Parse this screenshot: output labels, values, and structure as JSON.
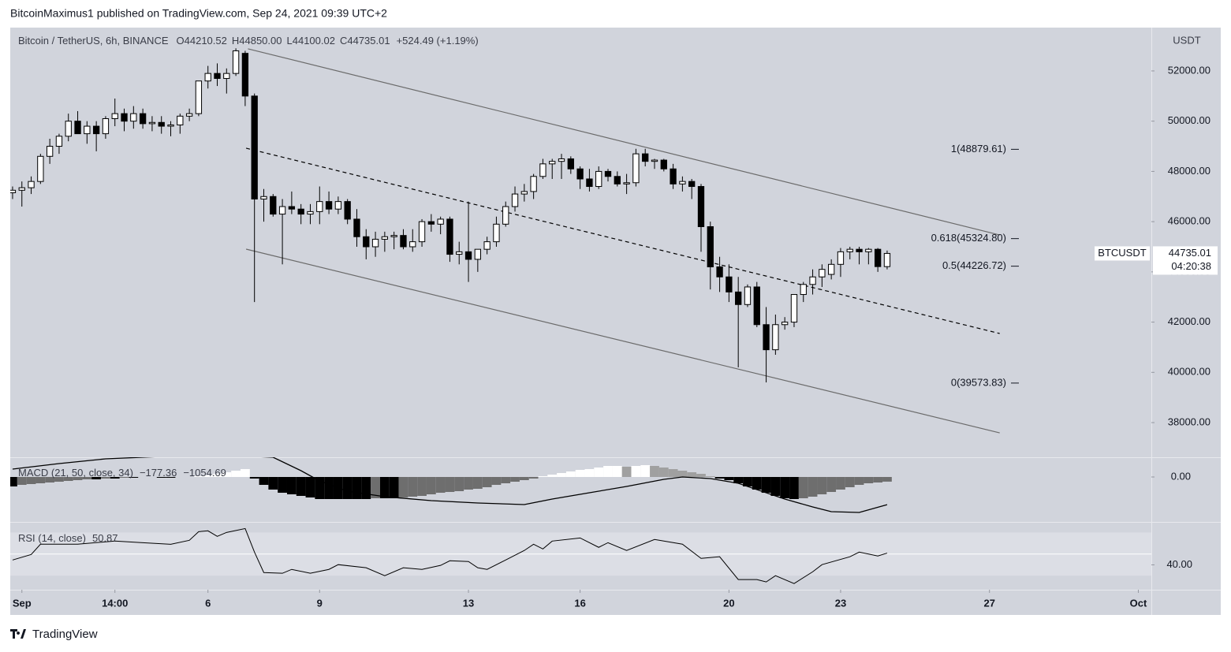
{
  "header": {
    "published": "BitcoinMaximus1 published on TradingView.com, Sep 24, 2021 09:39 UTC+2"
  },
  "footer": {
    "brand": "TradingView"
  },
  "chart_data": {
    "type": "candlestick",
    "symbol_title": "Bitcoin / TetherUS, 6h, BINANCE",
    "ohlc_legend": [
      {
        "key": "O",
        "value": "44210.52"
      },
      {
        "key": "H",
        "value": "44850.00"
      },
      {
        "key": "L",
        "value": "44100.02"
      },
      {
        "key": "C",
        "value": "44735.01"
      }
    ],
    "change": "+524.49 (+1.19%)",
    "currency": "USDT",
    "up_color": "#ffffff",
    "down_color": "#000000",
    "grid": false,
    "xlim": [
      -0.25,
      122.4
    ],
    "xticks": [
      {
        "value": 1,
        "label": "Sep"
      },
      {
        "value": 11,
        "label": "14:00"
      },
      {
        "value": 21,
        "label": "6"
      },
      {
        "value": 33,
        "label": "9"
      },
      {
        "value": 49,
        "label": "13"
      },
      {
        "value": 61,
        "label": "16"
      },
      {
        "value": 77,
        "label": "20"
      },
      {
        "value": 89,
        "label": "23"
      },
      {
        "value": 105,
        "label": "27"
      },
      {
        "value": 121,
        "label": "Oct"
      }
    ],
    "ylim": [
      36620,
      53725
    ],
    "yticks": [
      {
        "value": 38000,
        "label": "38000.00"
      },
      {
        "value": 40000,
        "label": "40000.00"
      },
      {
        "value": 42000,
        "label": "42000.00"
      },
      {
        "value": 44000,
        "label": "44000.00"
      },
      {
        "value": 46000,
        "label": "46000.00"
      },
      {
        "value": 48000,
        "label": "48000.00"
      },
      {
        "value": 50000,
        "label": "50000.00"
      },
      {
        "value": 52000,
        "label": "52000.00"
      }
    ],
    "candles": [
      [
        47150,
        47400,
        46900,
        47250
      ],
      [
        47250,
        47600,
        46600,
        47350
      ],
      [
        47350,
        47800,
        47100,
        47600
      ],
      [
        47600,
        48700,
        47500,
        48600
      ],
      [
        48600,
        49300,
        48300,
        49000
      ],
      [
        49000,
        49500,
        48700,
        49400
      ],
      [
        49400,
        50300,
        49200,
        50000
      ],
      [
        50000,
        50400,
        49500,
        49500
      ],
      [
        49500,
        50000,
        49100,
        49800
      ],
      [
        49800,
        50000,
        48800,
        49500
      ],
      [
        49500,
        50200,
        49300,
        50100
      ],
      [
        50100,
        50900,
        49800,
        50300
      ],
      [
        50300,
        50500,
        49600,
        50000
      ],
      [
        50000,
        50600,
        49700,
        50300
      ],
      [
        50300,
        50500,
        49700,
        49900
      ],
      [
        49900,
        50200,
        49600,
        49950
      ],
      [
        49950,
        50200,
        49500,
        49800
      ],
      [
        49800,
        50000,
        49400,
        49850
      ],
      [
        49850,
        50300,
        49500,
        50200
      ],
      [
        50200,
        50500,
        50000,
        50300
      ],
      [
        50300,
        51600,
        50200,
        51600
      ],
      [
        51600,
        52200,
        51300,
        51900
      ],
      [
        51900,
        52300,
        51400,
        51700
      ],
      [
        51700,
        52100,
        51100,
        51900
      ],
      [
        51900,
        52900,
        51800,
        52800
      ],
      [
        52700,
        52800,
        50600,
        51000
      ],
      [
        51000,
        51100,
        42800,
        46900
      ],
      [
        46900,
        47300,
        46000,
        47000
      ],
      [
        47000,
        47100,
        46200,
        46300
      ],
      [
        46300,
        46900,
        44300,
        46600
      ],
      [
        46600,
        47200,
        46300,
        46500
      ],
      [
        46500,
        46700,
        45900,
        46300
      ],
      [
        46300,
        46700,
        45900,
        46400
      ],
      [
        46400,
        47400,
        45900,
        46800
      ],
      [
        46800,
        47200,
        46300,
        46500
      ],
      [
        46500,
        47000,
        46300,
        46800
      ],
      [
        46800,
        46900,
        45900,
        46100
      ],
      [
        46100,
        46500,
        45000,
        45400
      ],
      [
        45400,
        45700,
        44500,
        45000
      ],
      [
        45000,
        45600,
        44600,
        45300
      ],
      [
        45300,
        45600,
        44800,
        45400
      ],
      [
        45400,
        45600,
        44900,
        45450
      ],
      [
        45450,
        45700,
        44900,
        45000
      ],
      [
        45000,
        45700,
        44800,
        45200
      ],
      [
        45200,
        46100,
        45000,
        46000
      ],
      [
        46000,
        46300,
        45600,
        45900
      ],
      [
        45900,
        46200,
        45500,
        46100
      ],
      [
        46100,
        46200,
        44400,
        44700
      ],
      [
        44700,
        45200,
        44300,
        44800
      ],
      [
        44800,
        46800,
        43600,
        44500
      ],
      [
        44500,
        44900,
        44000,
        44900
      ],
      [
        44900,
        45400,
        44700,
        45200
      ],
      [
        45200,
        46200,
        45000,
        45900
      ],
      [
        45900,
        46800,
        45800,
        46600
      ],
      [
        46600,
        47400,
        46400,
        47100
      ],
      [
        47100,
        47500,
        46800,
        47200
      ],
      [
        47200,
        47900,
        46900,
        47800
      ],
      [
        47800,
        48500,
        47700,
        48300
      ],
      [
        48300,
        48500,
        47700,
        48400
      ],
      [
        48400,
        48700,
        47700,
        48500
      ],
      [
        48500,
        48600,
        47900,
        48100
      ],
      [
        48100,
        48200,
        47300,
        47700
      ],
      [
        47700,
        48100,
        47200,
        47400
      ],
      [
        47400,
        48200,
        47300,
        48000
      ],
      [
        48000,
        48100,
        47600,
        47800
      ],
      [
        47800,
        48000,
        47400,
        47500
      ],
      [
        47500,
        47900,
        47100,
        47550
      ],
      [
        47550,
        48900,
        47400,
        48700
      ],
      [
        48700,
        48900,
        48200,
        48400
      ],
      [
        48400,
        48500,
        48100,
        48450
      ],
      [
        48450,
        48500,
        48000,
        48100
      ],
      [
        48100,
        48300,
        47300,
        47500
      ],
      [
        47500,
        47800,
        47200,
        47600
      ],
      [
        47600,
        47700,
        46900,
        47400
      ],
      [
        47400,
        47500,
        44800,
        45800
      ],
      [
        45800,
        46000,
        43300,
        44200
      ],
      [
        44200,
        44600,
        43200,
        43800
      ],
      [
        43800,
        44300,
        42800,
        43200
      ],
      [
        43200,
        43800,
        40200,
        42700
      ],
      [
        42700,
        43500,
        42600,
        43400
      ],
      [
        43400,
        43600,
        41800,
        41900
      ],
      [
        41900,
        42600,
        39600,
        40900
      ],
      [
        40900,
        42300,
        40700,
        41900
      ],
      [
        41900,
        42200,
        41700,
        42000
      ],
      [
        42000,
        43100,
        41800,
        43100
      ],
      [
        43100,
        43600,
        42800,
        43500
      ],
      [
        43500,
        44100,
        43100,
        43800
      ],
      [
        43800,
        44300,
        43400,
        44100
      ],
      [
        43900,
        44500,
        43700,
        44300
      ],
      [
        44300,
        44950,
        43800,
        44800
      ],
      [
        44800,
        45000,
        44500,
        44900
      ],
      [
        44900,
        45000,
        44300,
        44800
      ],
      [
        44800,
        44950,
        44300,
        44900
      ],
      [
        44900,
        44950,
        44000,
        44210.52
      ],
      [
        44210.52,
        44850,
        44100.02,
        44735.01
      ]
    ],
    "channel": {
      "color": "#6b6b6b",
      "upper": {
        "x": [
          25.3,
          106.1
        ],
        "y": [
          52880,
          45470
        ]
      },
      "middle": {
        "x": [
          25.1,
          106.1
        ],
        "y": [
          48924,
          41547
        ]
      },
      "lower": {
        "x": [
          25.1,
          106.1
        ],
        "y": [
          44906,
          37592
        ]
      }
    },
    "fib_levels": [
      {
        "value": 48879.61,
        "label": "1(48879.61)"
      },
      {
        "value": 45324.8,
        "label": "0.618(45324.80)"
      },
      {
        "value": 44226.72,
        "label": "0.5(44226.72)"
      },
      {
        "value": 39573.83,
        "label": "0(39573.83)"
      }
    ],
    "price_tag": {
      "symbol": "BTCUSDT",
      "price": 44735.01,
      "countdown": "04:20:38"
    },
    "macd": {
      "title": "MACD (21, 50, close, 34)",
      "values_text": [
        "−177.36",
        "−1054.69"
      ],
      "ylim": [
        -1710,
        750
      ],
      "yticks": [
        {
          "value": 0,
          "label": "0.00"
        }
      ],
      "histogram_colors": {
        "neg_fall": "#000000",
        "neg_rise": "#6e6e6e",
        "pos_rise": "#ffffff",
        "pos_fall": "#a0a0a0"
      },
      "line_color": "#000000",
      "histogram": [
        -360,
        -300,
        -270,
        -240,
        -210,
        -180,
        -150,
        -120,
        -90,
        -90,
        -60,
        -60,
        -30,
        -30,
        0,
        0,
        -30,
        -30,
        0,
        0,
        30,
        60,
        120,
        180,
        240,
        300,
        -60,
        -300,
        -480,
        -600,
        -660,
        -720,
        -780,
        -840,
        -840,
        -840,
        -840,
        -840,
        -840,
        -810,
        -810,
        -810,
        -780,
        -750,
        -720,
        -660,
        -600,
        -570,
        -540,
        -480,
        -450,
        -390,
        -300,
        -240,
        -180,
        -120,
        -60,
        30,
        90,
        150,
        210,
        270,
        300,
        360,
        420,
        420,
        390,
        420,
        450,
        420,
        360,
        300,
        240,
        180,
        120,
        30,
        -60,
        -120,
        -240,
        -360,
        -480,
        -600,
        -720,
        -810,
        -840,
        -810,
        -750,
        -660,
        -570,
        -480,
        -390,
        -300,
        -240,
        -210,
        -177.36
      ],
      "line": {
        "x": [
          0,
          5,
          10,
          14,
          18,
          22,
          28,
          31,
          33,
          36,
          40,
          45,
          50,
          55,
          58,
          62,
          66,
          70,
          72,
          75,
          78,
          80,
          83,
          86,
          88,
          91,
          94
        ],
        "values": [
          300,
          510,
          690,
          750,
          810,
          840,
          750,
          240,
          -150,
          -540,
          -750,
          -900,
          -990,
          -1050,
          -840,
          -600,
          -360,
          -90,
          0,
          -60,
          -240,
          -480,
          -840,
          -1140,
          -1320,
          -1350,
          -1054.69
        ]
      }
    },
    "rsi": {
      "title": "RSI (14, close)",
      "value_text": "50.87",
      "ylim": [
        17,
        79
      ],
      "yticks": [
        {
          "value": 40,
          "label": "40.00"
        }
      ],
      "band": [
        30,
        70
      ],
      "midline": 50,
      "line_color": "#000000",
      "x": [
        0,
        2,
        3,
        7,
        11,
        14,
        17,
        19,
        20,
        21,
        22,
        23,
        25,
        26,
        27,
        29,
        30,
        32,
        34,
        35,
        38,
        40,
        42,
        44,
        46,
        47,
        49,
        50,
        51,
        53,
        55,
        56,
        57,
        58,
        61,
        63,
        64,
        66,
        69,
        72,
        74,
        76,
        78,
        80,
        81,
        82,
        84,
        86,
        87,
        90,
        91,
        93,
        94
      ],
      "values": [
        44.5,
        49.6,
        59.1,
        59.1,
        62,
        60.5,
        59,
        62.7,
        70.7,
        71.5,
        66.4,
        70,
        73.6,
        51.8,
        32.9,
        32.2,
        35.8,
        32.2,
        35.8,
        40.2,
        37.3,
        30,
        37.3,
        35.8,
        39.5,
        43.8,
        43.1,
        37.3,
        35.8,
        44.5,
        53.3,
        59.1,
        54.7,
        62,
        64.9,
        56.2,
        60.5,
        53.3,
        63.5,
        59.1,
        46,
        47.5,
        26.4,
        26.4,
        24.2,
        30,
        22.7,
        33.6,
        40.2,
        47.5,
        51.8,
        48.2,
        50.87
      ]
    }
  }
}
